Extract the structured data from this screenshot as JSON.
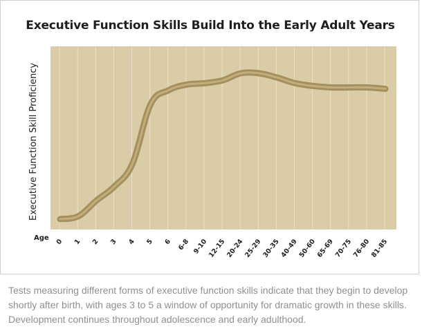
{
  "chart_data": {
    "type": "line",
    "title": "Executive Function Skills Build Into the Early Adult Years",
    "xlabel": "Age",
    "ylabel": "Executive Function Skill Proficiency",
    "categories": [
      "0",
      "1",
      "2",
      "3",
      "4",
      "5",
      "6",
      "6-8",
      "9-10",
      "12-15",
      "20-24",
      "25-29",
      "30-35",
      "40-49",
      "50-60",
      "65-69",
      "70-75",
      "76-80",
      "81-85"
    ],
    "grid": "vertical",
    "ylim": [
      0,
      100
    ],
    "series": [
      {
        "values": [
          1,
          3,
          14,
          24,
          40,
          82,
          92,
          96,
          97,
          99,
          104,
          104,
          101,
          97,
          95,
          94,
          94,
          94,
          93
        ]
      }
    ],
    "colors": {
      "plot_background": "#dacca7",
      "gridline": "#ece2c9",
      "curve": "#a48f5e",
      "curve_highlight": "#c2ad7b"
    }
  },
  "caption": "Tests measuring different forms of executive function skills indicate that they begin to develop shortly after birth, with ages 3 to 5 a window of opportunity for dramatic growth in these skills. Development continues throughout adolescence and early adulthood."
}
